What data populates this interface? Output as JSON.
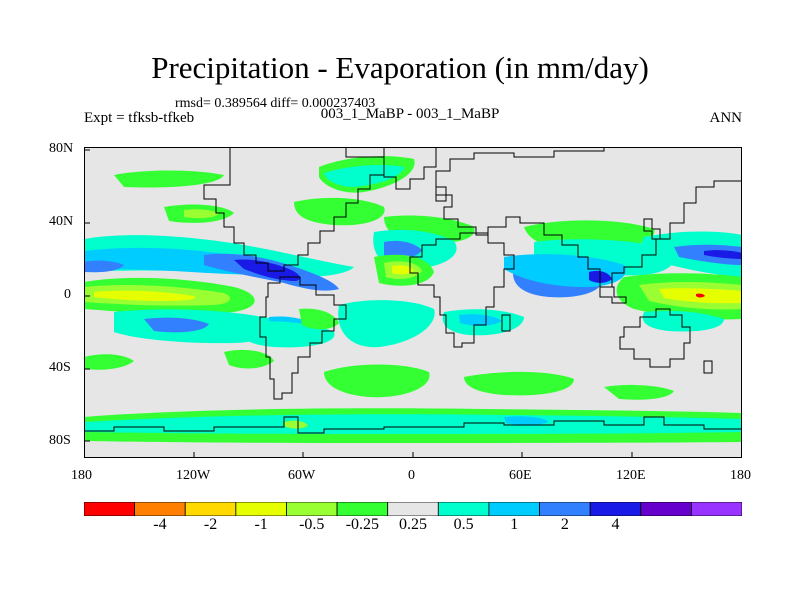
{
  "title": "Precipitation - Evaporation (in mm/day)",
  "stats": "rmsd= 0.389564 diff= 0.000237403",
  "left_label": "Expt = tfksb-tfkeb",
  "center_label": "003_1_MaBP - 003_1_MaBP",
  "right_label": "ANN",
  "lat_labels": [
    "80N",
    "40N",
    "0",
    "40S",
    "80S"
  ],
  "lon_labels": [
    "180",
    "120W",
    "60W",
    "0",
    "60E",
    "120E",
    "180"
  ],
  "colorbar": {
    "colors": [
      "#ff0000",
      "#ff8000",
      "#ffd900",
      "#e6ff00",
      "#99ff33",
      "#33ff33",
      "#e6e6e6",
      "#00ffcc",
      "#00ccff",
      "#3380ff",
      "#1a1ae6",
      "#6600cc",
      "#9933ff"
    ],
    "labels": [
      "-4",
      "-2",
      "-1",
      "-0.5",
      "-0.25",
      "0.25",
      "0.5",
      "1",
      "2",
      "4"
    ]
  },
  "map_colors": {
    "neutral": "#e6e6e6",
    "light_green": "#33ff33",
    "yellow_green": "#99ff33",
    "yellow": "#e6ff00",
    "cyan": "#00ffcc",
    "sky": "#00ccff",
    "blue": "#3380ff",
    "dark_blue": "#1a1ae6",
    "red": "#ff0000"
  }
}
